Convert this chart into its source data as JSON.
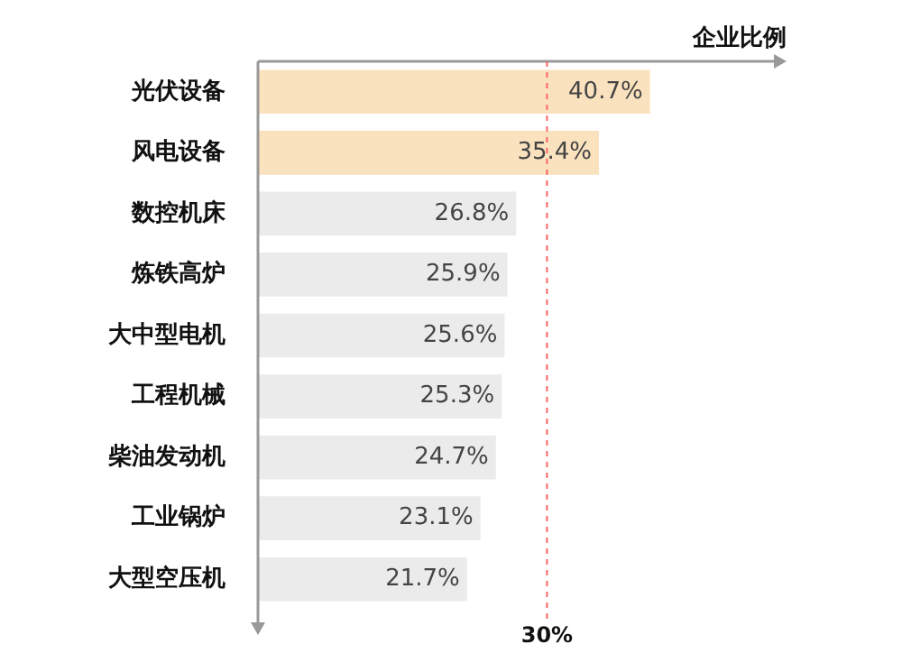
{
  "chart_data": {
    "type": "bar",
    "orientation": "horizontal",
    "xlabel": "企业比例",
    "categories": [
      "光伏设备",
      "风电设备",
      "数控机床",
      "炼铁高炉",
      "大中型电机",
      "工程机械",
      "柴油发动机",
      "工业锅炉",
      "大型空压机"
    ],
    "values": [
      40.7,
      35.4,
      26.8,
      25.9,
      25.6,
      25.3,
      24.7,
      23.1,
      21.7
    ],
    "colors": [
      "#fae2bf",
      "#fae2bf",
      "#ebebeb",
      "#ebebeb",
      "#ebebeb",
      "#ebebeb",
      "#ebebeb",
      "#ebebeb",
      "#ebebeb"
    ],
    "value_labels": [
      "40.7%",
      "35.4%",
      "26.8%",
      "25.9%",
      "25.6%",
      "25.3%",
      "24.7%",
      "23.1%",
      "21.7%"
    ],
    "tick_labels": "y",
    "ref_lines": [
      {
        "axis": "x",
        "value": 30,
        "label": "30%",
        "color": "#ff6666",
        "line_style": "dashed"
      }
    ]
  }
}
